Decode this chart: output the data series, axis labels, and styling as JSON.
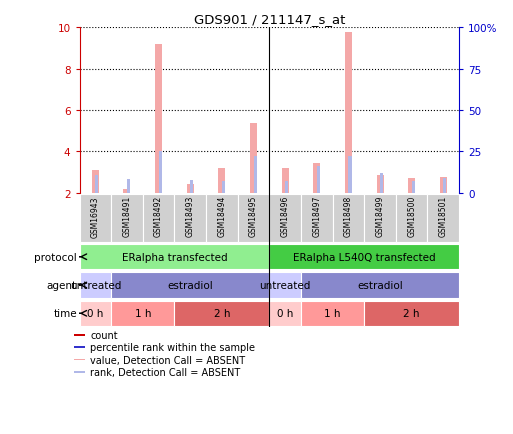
{
  "title": "GDS901 / 211147_s_at",
  "samples": [
    "GSM16943",
    "GSM18491",
    "GSM18492",
    "GSM18493",
    "GSM18494",
    "GSM18495",
    "GSM18496",
    "GSM18497",
    "GSM18498",
    "GSM18499",
    "GSM18500",
    "GSM18501"
  ],
  "value_absent": [
    3.1,
    2.15,
    9.2,
    2.4,
    3.2,
    5.35,
    3.2,
    3.45,
    9.75,
    2.85,
    2.7,
    2.75
  ],
  "rank_absent": [
    2.85,
    2.65,
    4.0,
    2.6,
    2.55,
    3.75,
    2.55,
    3.3,
    3.75,
    2.95,
    2.55,
    2.7
  ],
  "ylim_left": [
    2,
    10
  ],
  "ylim_right": [
    0,
    100
  ],
  "yticks_left": [
    2,
    4,
    6,
    8,
    10
  ],
  "yticks_right": [
    0,
    25,
    50,
    75,
    100
  ],
  "ytick_labels_right": [
    "0",
    "25",
    "50",
    "75",
    "100%"
  ],
  "color_value_absent": "#f4a8a8",
  "color_rank_absent": "#b0b8e8",
  "protocol_groups": [
    {
      "label": "ERalpha transfected",
      "start": 0,
      "end": 5,
      "color": "#90ee90"
    },
    {
      "label": "ERalpha L540Q transfected",
      "start": 6,
      "end": 11,
      "color": "#44cc44"
    }
  ],
  "agent_groups": [
    {
      "label": "untreated",
      "start": 0,
      "end": 0,
      "color": "#ccccff"
    },
    {
      "label": "estradiol",
      "start": 1,
      "end": 5,
      "color": "#8888cc"
    },
    {
      "label": "untreated",
      "start": 6,
      "end": 6,
      "color": "#ccccff"
    },
    {
      "label": "estradiol",
      "start": 7,
      "end": 11,
      "color": "#8888cc"
    }
  ],
  "time_groups": [
    {
      "label": "0 h",
      "start": 0,
      "end": 0,
      "color": "#ffcccc"
    },
    {
      "label": "1 h",
      "start": 1,
      "end": 2,
      "color": "#ff9999"
    },
    {
      "label": "2 h",
      "start": 3,
      "end": 5,
      "color": "#dd6666"
    },
    {
      "label": "0 h",
      "start": 6,
      "end": 6,
      "color": "#ffcccc"
    },
    {
      "label": "1 h",
      "start": 7,
      "end": 8,
      "color": "#ff9999"
    },
    {
      "label": "2 h",
      "start": 9,
      "end": 11,
      "color": "#dd6666"
    }
  ],
  "legend_items": [
    {
      "label": "count",
      "color": "#cc0000"
    },
    {
      "label": "percentile rank within the sample",
      "color": "#3333cc"
    },
    {
      "label": "value, Detection Call = ABSENT",
      "color": "#f4a8a8"
    },
    {
      "label": "rank, Detection Call = ABSENT",
      "color": "#b0b8e8"
    }
  ],
  "bg_color": "#ffffff",
  "left_axis_color": "#cc0000",
  "right_axis_color": "#0000cc"
}
